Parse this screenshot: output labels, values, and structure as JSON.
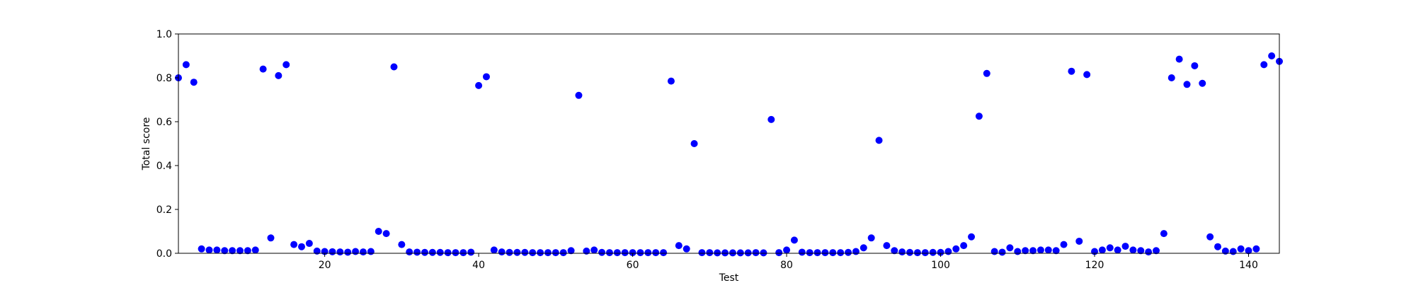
{
  "chart_data": {
    "type": "scatter",
    "title": "",
    "xlabel": "Test",
    "ylabel": "Total score",
    "xlim": [
      1,
      144
    ],
    "ylim": [
      0.0,
      1.0
    ],
    "grid": false,
    "marker_color": "#0000ff",
    "x_ticks": [
      20,
      40,
      60,
      80,
      100,
      120,
      140
    ],
    "x_tick_labels": [
      "20",
      "40",
      "60",
      "80",
      "100",
      "120",
      "140"
    ],
    "y_ticks": [
      0.0,
      0.2,
      0.4,
      0.6,
      0.8,
      1.0
    ],
    "y_tick_labels": [
      "0.0",
      "0.2",
      "0.4",
      "0.6",
      "0.8",
      "1.0"
    ],
    "series": [
      {
        "x": [
          1,
          2,
          3,
          4,
          5,
          6,
          7,
          8,
          9,
          10,
          11,
          12,
          13,
          14,
          15,
          16,
          17,
          18,
          19,
          20,
          21,
          22,
          23,
          24,
          25,
          26,
          27,
          28,
          29,
          30,
          31,
          32,
          33,
          34,
          35,
          36,
          37,
          38,
          39,
          40,
          41,
          42,
          43,
          44,
          45,
          46,
          47,
          48,
          49,
          50,
          51,
          52,
          53,
          54,
          55,
          56,
          57,
          58,
          59,
          60,
          61,
          62,
          63,
          64,
          65,
          66,
          67,
          68,
          69,
          70,
          71,
          72,
          73,
          74,
          75,
          76,
          77,
          78,
          79,
          80,
          81,
          82,
          83,
          84,
          85,
          86,
          87,
          88,
          89,
          90,
          91,
          92,
          93,
          94,
          95,
          96,
          97,
          98,
          99,
          100,
          101,
          102,
          103,
          104,
          105,
          106,
          107,
          108,
          109,
          110,
          111,
          112,
          113,
          114,
          115,
          116,
          117,
          118,
          119,
          120,
          121,
          122,
          123,
          124,
          125,
          126,
          127,
          128,
          129,
          130,
          131,
          132,
          133,
          134,
          135,
          136,
          137,
          138,
          139,
          140,
          141,
          142,
          143,
          144
        ],
        "y": [
          0.8,
          0.86,
          0.78,
          0.02,
          0.015,
          0.015,
          0.012,
          0.012,
          0.012,
          0.012,
          0.015,
          0.84,
          0.07,
          0.81,
          0.86,
          0.04,
          0.03,
          0.045,
          0.01,
          0.008,
          0.007,
          0.006,
          0.005,
          0.008,
          0.006,
          0.008,
          0.1,
          0.09,
          0.85,
          0.04,
          0.006,
          0.005,
          0.004,
          0.004,
          0.004,
          0.003,
          0.003,
          0.003,
          0.005,
          0.765,
          0.805,
          0.015,
          0.006,
          0.004,
          0.004,
          0.004,
          0.003,
          0.003,
          0.003,
          0.003,
          0.003,
          0.012,
          0.72,
          0.01,
          0.015,
          0.004,
          0.003,
          0.003,
          0.003,
          0.003,
          0.003,
          0.003,
          0.003,
          0.003,
          0.785,
          0.035,
          0.02,
          0.5,
          0.003,
          0.003,
          0.002,
          0.002,
          0.002,
          0.002,
          0.002,
          0.003,
          0.002,
          0.61,
          0.003,
          0.015,
          0.06,
          0.005,
          0.003,
          0.003,
          0.003,
          0.003,
          0.003,
          0.004,
          0.008,
          0.025,
          0.07,
          0.515,
          0.035,
          0.012,
          0.006,
          0.004,
          0.003,
          0.003,
          0.004,
          0.004,
          0.008,
          0.02,
          0.035,
          0.075,
          0.625,
          0.82,
          0.008,
          0.005,
          0.025,
          0.008,
          0.012,
          0.012,
          0.015,
          0.015,
          0.012,
          0.04,
          0.83,
          0.055,
          0.815,
          0.008,
          0.015,
          0.025,
          0.015,
          0.032,
          0.015,
          0.012,
          0.006,
          0.012,
          0.09,
          0.8,
          0.885,
          0.77,
          0.855,
          0.775,
          0.075,
          0.03,
          0.01,
          0.008,
          0.02,
          0.012,
          0.02,
          0.86,
          0.9,
          0.875
        ]
      }
    ]
  }
}
